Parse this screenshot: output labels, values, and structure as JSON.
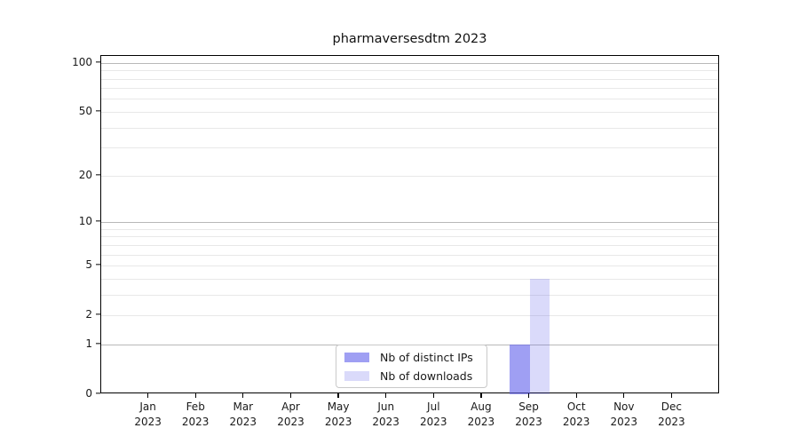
{
  "title": "pharmaversesdtm 2023",
  "legend": {
    "items": [
      {
        "label": "Nb of distinct IPs",
        "color_hex": "#9f9ff3"
      },
      {
        "label": "Nb of downloads",
        "color_hex": "#dadafa"
      }
    ]
  },
  "chart_data": {
    "type": "bar",
    "title": "pharmaversesdtm 2023",
    "x_categories": [
      "Jan",
      "Feb",
      "Mar",
      "Apr",
      "May",
      "Jun",
      "Jul",
      "Aug",
      "Sep",
      "Oct",
      "Nov",
      "Dec"
    ],
    "x_year": "2023",
    "series": [
      {
        "name": "Nb of distinct IPs",
        "color": "rgba(100,100,235,0.62)",
        "color_hex": "#9f9ff3",
        "values": [
          0,
          0,
          0,
          0,
          0,
          0,
          0,
          0,
          1,
          0,
          0,
          0
        ]
      },
      {
        "name": "Nb of downloads",
        "color": "rgba(100,100,235,0.24)",
        "color_hex": "#dadafa",
        "values": [
          0,
          0,
          0,
          0,
          0,
          0,
          0,
          0,
          4,
          0,
          0,
          0
        ]
      }
    ],
    "y_scale": "log1p",
    "ylim": [
      0,
      110
    ],
    "y_ticks": [
      100,
      50,
      20,
      10,
      5,
      2,
      1,
      0
    ],
    "grid_values": [
      1,
      2,
      3,
      4,
      5,
      6,
      7,
      8,
      9,
      10,
      20,
      30,
      40,
      50,
      60,
      70,
      80,
      90,
      100
    ],
    "grid_major_values": [
      1,
      10,
      100
    ],
    "grid_color_major": "#b8b8b8",
    "grid_color_minor": "#e8e8e8",
    "legend_position": "lower center",
    "bars_month": "Sep 2023",
    "bar_values": {
      "distinct_ips": 1,
      "downloads": 4
    }
  }
}
